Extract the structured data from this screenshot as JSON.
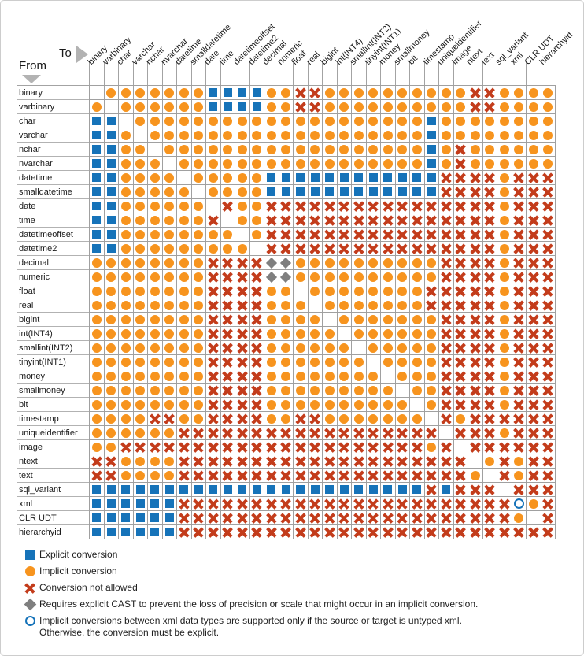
{
  "header": {
    "from_label": "From",
    "to_label": "To"
  },
  "colors": {
    "implicit_orange": "#F7941E",
    "explicit_blue": "#1673B9",
    "not_allowed_red": "#C33C1B",
    "cast_gray": "#7F7F7F",
    "grid_line": "#A0A0A0"
  },
  "chart_data": {
    "type": "heatmap",
    "title": "",
    "x_axis_label": "To",
    "y_axis_label": "From",
    "categories_x": [
      "binary",
      "varbinary",
      "char",
      "varchar",
      "nchar",
      "nvarchar",
      "datetime",
      "smalldatetime",
      "date",
      "time",
      "datetimeoffset",
      "datetime2",
      "decimal",
      "numeric",
      "float",
      "real",
      "bigint",
      "int(INT4)",
      "smallint(INT2)",
      "tinyint(INT1)",
      "money",
      "smallmoney",
      "bit",
      "timestamp",
      "uniqueidentifier",
      "image",
      "ntext",
      "text",
      "sql_variant",
      "xml",
      "CLR UDT",
      "hierarchyid"
    ],
    "categories_y": [
      "binary",
      "varbinary",
      "char",
      "varchar",
      "nchar",
      "nvarchar",
      "datetime",
      "smalldatetime",
      "date",
      "time",
      "datetimeoffset",
      "datetime2",
      "decimal",
      "numeric",
      "float",
      "real",
      "bigint",
      "int(INT4)",
      "smallint(INT2)",
      "tinyint(INT1)",
      "money",
      "smallmoney",
      "bit",
      "timestamp",
      "uniqueidentifier",
      "image",
      "ntext",
      "text",
      "sql_variant",
      "xml",
      "CLR UDT",
      "hierarchyid"
    ],
    "cell_code_meaning": {
      ".": "blank (same type, no symbol)",
      "I": "implicit conversion",
      "E": "explicit conversion",
      "X": "conversion not allowed",
      "D": "requires explicit CAST",
      "O": "implicit only if untyped xml"
    },
    "matrix": [
      ".IIIIIIIEEEEIIXXIIIIIIIIIIXXIIII",
      "I.IIIIIIEEEEIIXXIIIIIIIIIIXXIIII",
      "EE.IIIIIIIIIIIIIIIIIIIIEIIIIIIII",
      "EEI.IIIIIIIIIIIIIIIIIIIEIIIIIIII",
      "EEII.IIIIIIIIIIIIIIIIIIEIXIIIIII",
      "EEIII.IIIIIIIIIIIIIIIIIEIXIIIIII",
      "EEIIII.IIIIIEEEEEEEEEEEEXXXXIXXX",
      "EEIIIII.IIIIEEEEEEEEEEEEXXXXIXXX",
      "EEIIIIII.XIIXXXXXXXXXXXXXXXXIXXX",
      "EEIIIIIIX.IIXXXXXXXXXXXXXXXXIXXX",
      "EEIIIIIIII.IXXXXXXXXXXXXXXXXIXXX",
      "EEIIIIIIIII.XXXXXXXXXXXXXXXXIXXX",
      "IIIIIIIIXXXXDDIIIIIIIIIIXXXXIXXX",
      "IIIIIIIIXXXXDDIIIIIIIIIIXXXXIXXX",
      "IIIIIIIIXXXXII.IIIIIIIIXXXXXIXXX",
      "IIIIIIIIXXXXIII.IIIIIIIXXXXXIXXX",
      "IIIIIIIIXXXXIIII.IIIIIIIXXXXIXXX",
      "IIIIIIIIXXXXIIIII.IIIIIIXXXXIXXX",
      "IIIIIIIIXXXXIIIIII.IIIIIXXXXIXXX",
      "IIIIIIIIXXXXIIIIIII.IIIIXXXXIXXX",
      "IIIIIIIIXXXXIIIIIIII.IIIXXXXIXXX",
      "IIIIIIIIXXXXIIIIIIIII.IIXXXXIXXX",
      "IIIIIIIIXXXXIIIIIIIIII.IXXXXIXXX",
      "IIIIXXIIXXXXIIXXIIIIIII.XIXXXXXX",
      "IIIIIIXXXXXXXXXXXXXXXXXX.XXXIXXX",
      "IIXXXXXXXXXXXXXXXXXXXXXIX.XXXXXX",
      "XXIIIIXXXXXXXXXXXXXXXXXXXX.IXIXX",
      "XXIIIIXXXXXXXXXXXXXXXXXXXXI.XIXX",
      "EEEEEEEEEEEEEEEEEEEEEEEXEXXX.XXX",
      "EEEEEEXXXXXXXXXXXXXXXXXXXXXXXOIX",
      "EEEEEEXXXXXXXXXXXXXXXXXXXXXXXI.X",
      "EEEEEEXXXXXXXXXXXXXXXXXXXXXXXXXX"
    ],
    "legend_position": "bottom-left",
    "legend": [
      {
        "symbol": "E",
        "lines": [
          "Explicit conversion"
        ]
      },
      {
        "symbol": "I",
        "lines": [
          "Implicit conversion"
        ]
      },
      {
        "symbol": "X",
        "lines": [
          "Conversion not allowed"
        ]
      },
      {
        "symbol": "D",
        "lines": [
          "Requires explicit CAST to prevent the loss of precision or scale that might occur in an implicit conversion."
        ]
      },
      {
        "symbol": "O",
        "lines": [
          "Implicit conversions between xml data types are supported only if the source or target is untyped xml.",
          "Otherwise, the conversion must be explicit."
        ]
      }
    ]
  }
}
